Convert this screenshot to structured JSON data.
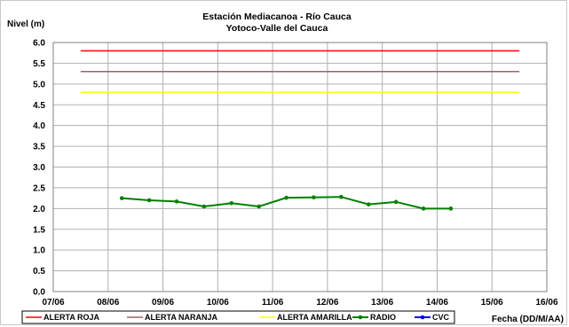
{
  "chart_data": {
    "type": "line",
    "title": "Estación Mediacanoa - Río Cauca",
    "subtitle": "Yotoco-Valle del Cauca",
    "ylabel": "Nivel (m)",
    "xlabel": "Fecha (DD/M/AA)",
    "ylim": [
      0,
      6
    ],
    "yticks": [
      "0.0",
      "0.5",
      "1.0",
      "1.5",
      "2.0",
      "2.5",
      "3.0",
      "3.5",
      "4.0",
      "4.5",
      "5.0",
      "5.5",
      "6.0"
    ],
    "xlim": [
      0,
      9
    ],
    "xticks": [
      "07/06",
      "08/06",
      "09/06",
      "10/06",
      "11/06",
      "12/06",
      "13/06",
      "14/06",
      "15/06",
      "16/06"
    ],
    "grid": true,
    "legend_position": "bottom",
    "series": [
      {
        "name": "ALERTA ROJA",
        "color": "#ff0000",
        "marker": false,
        "x": [
          0.5,
          8.5
        ],
        "y": [
          5.8,
          5.8
        ]
      },
      {
        "name": "ALERTA NARANJA",
        "color": "#996666",
        "marker": false,
        "x": [
          0.5,
          8.5
        ],
        "y": [
          5.3,
          5.3
        ]
      },
      {
        "name": "ALERTA AMARILLA",
        "color": "#ffff00",
        "marker": false,
        "x": [
          0.5,
          8.5
        ],
        "y": [
          4.8,
          4.8
        ]
      },
      {
        "name": "RADIO",
        "color": "#008000",
        "marker": true,
        "x": [
          1.25,
          1.75,
          2.25,
          2.75,
          3.25,
          3.75,
          4.25,
          4.75,
          5.25,
          5.75,
          6.25,
          6.75,
          7.25
        ],
        "y": [
          2.25,
          2.2,
          2.17,
          2.05,
          2.13,
          2.05,
          2.26,
          2.27,
          2.28,
          2.1,
          2.16,
          2.0,
          2.0
        ]
      },
      {
        "name": "CVC",
        "color": "#0000ff",
        "marker": true,
        "x": [],
        "y": []
      }
    ]
  }
}
